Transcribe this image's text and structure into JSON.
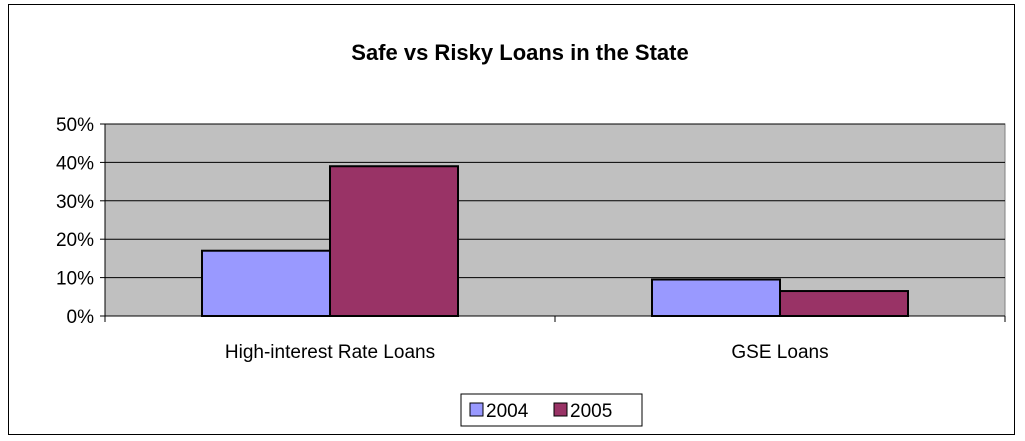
{
  "chart_data": {
    "type": "bar",
    "title": "Safe vs Risky Loans in the State",
    "categories": [
      "High-interest Rate Loans",
      "GSE Loans"
    ],
    "series": [
      {
        "name": "2004",
        "values": [
          0.17,
          0.095
        ],
        "color": "#9999ff"
      },
      {
        "name": "2005",
        "values": [
          0.39,
          0.065
        ],
        "color": "#993366"
      }
    ],
    "y_ticks": [
      "0%",
      "10%",
      "20%",
      "30%",
      "40%",
      "50%"
    ],
    "ylim": [
      0,
      0.5
    ],
    "grid": true,
    "plot_background": "#c0c0c0",
    "legend_position": "bottom"
  }
}
